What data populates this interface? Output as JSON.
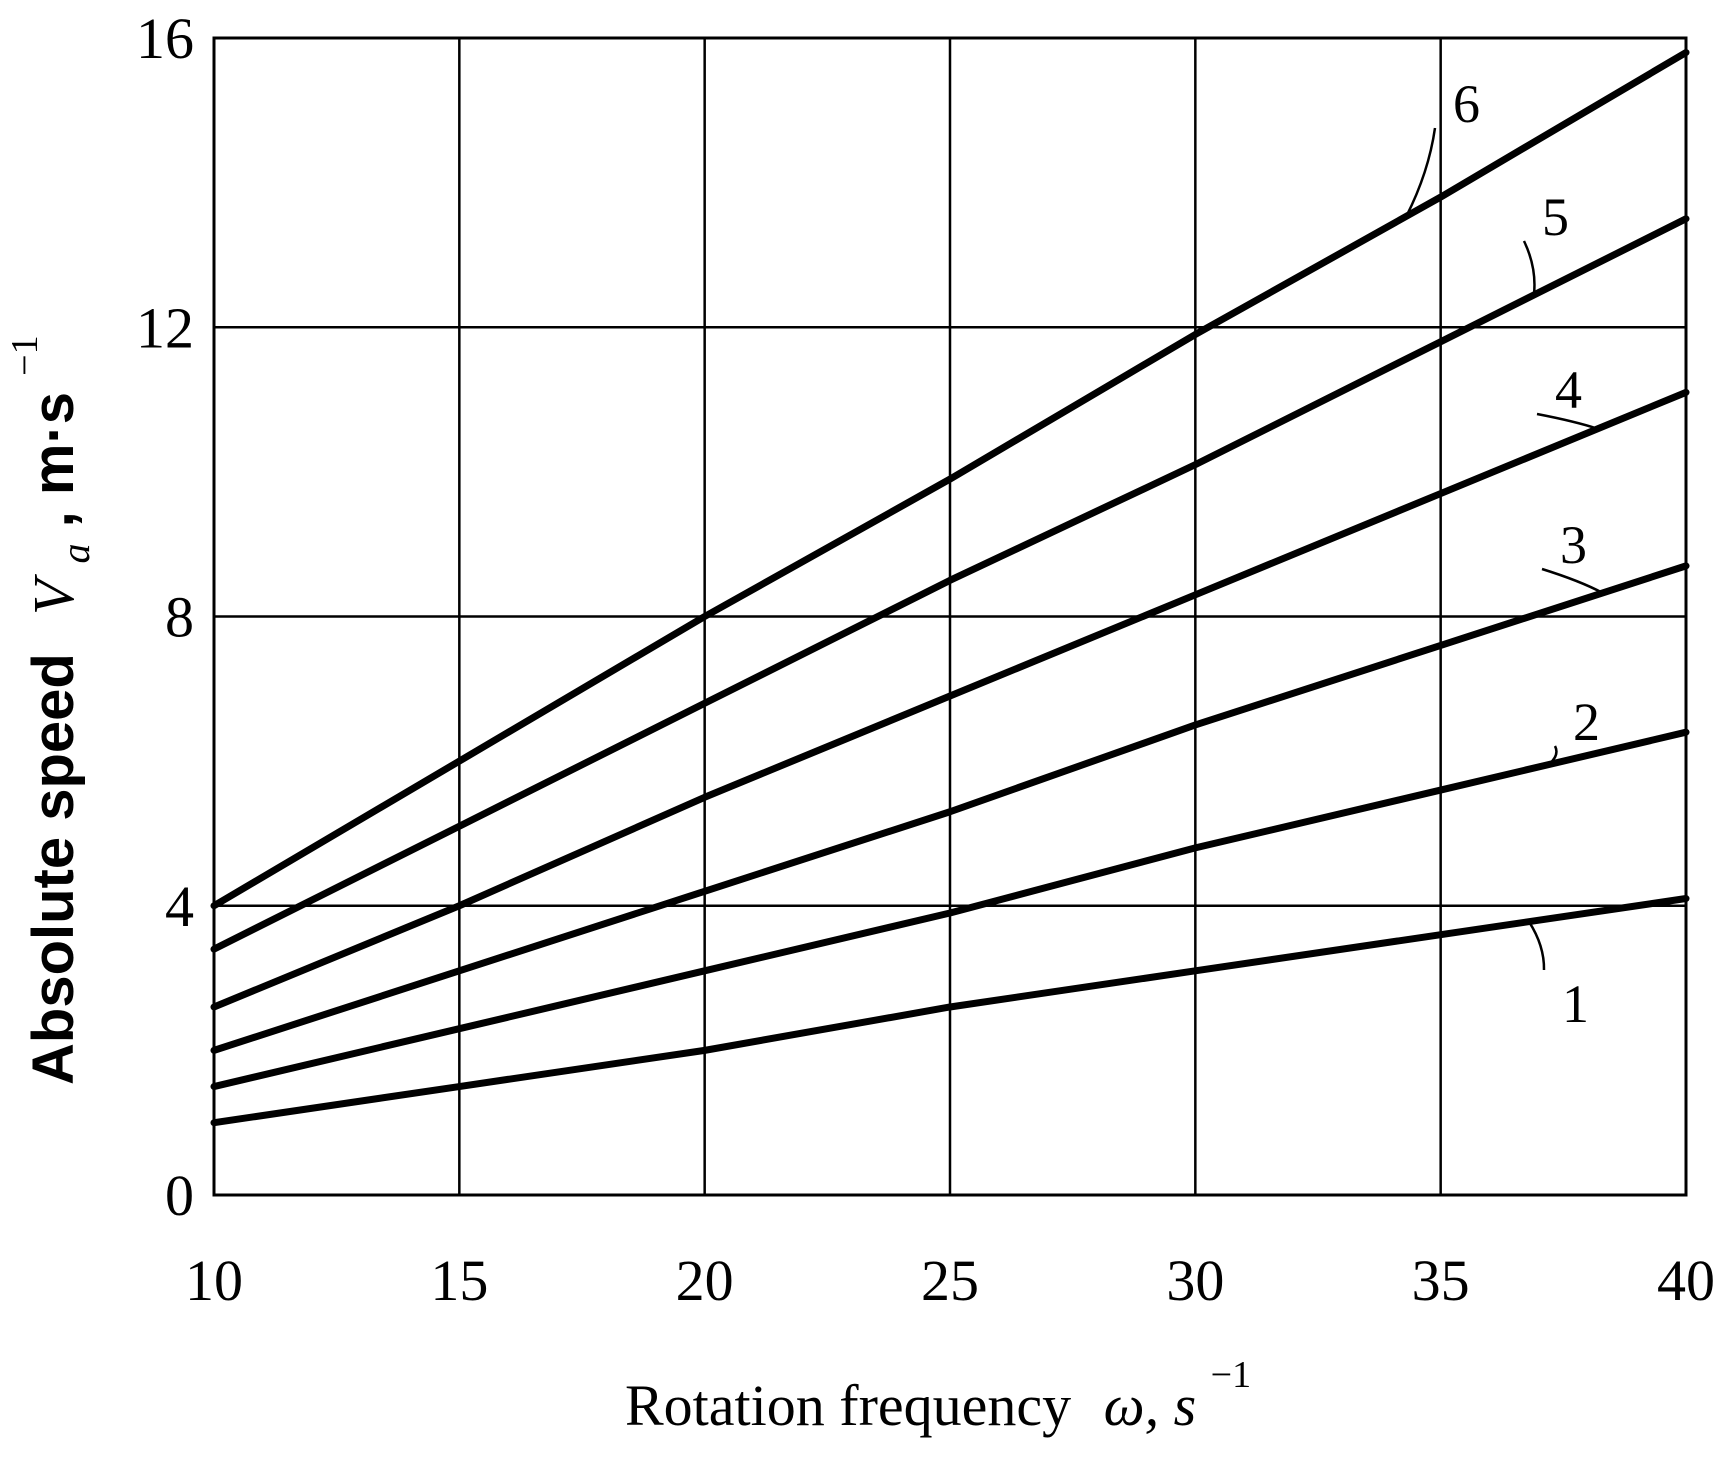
{
  "chart_data": {
    "type": "line",
    "xlabel": "Rotation frequency",
    "xlabel_symbol": "ω, s",
    "xlabel_exp": "−1",
    "ylabel": "Absolute speed",
    "ylabel_symbol": "V",
    "ylabel_sub": "a",
    "ylabel_unit": ", m·s",
    "ylabel_exp": "−1",
    "xlim": [
      10,
      40
    ],
    "ylim": [
      0,
      16
    ],
    "xticks": [
      10,
      15,
      20,
      25,
      30,
      35,
      40
    ],
    "yticks": [
      0,
      4,
      8,
      12,
      16
    ],
    "grid": true,
    "x": [
      10,
      15,
      20,
      25,
      30,
      35,
      40
    ],
    "series": [
      {
        "name": "1",
        "values": [
          1.0,
          1.5,
          2.0,
          2.6,
          3.1,
          3.6,
          4.1
        ]
      },
      {
        "name": "2",
        "values": [
          1.5,
          2.3,
          3.1,
          3.9,
          4.8,
          5.6,
          6.4
        ]
      },
      {
        "name": "3",
        "values": [
          2.0,
          3.1,
          4.2,
          5.3,
          6.5,
          7.6,
          8.7
        ]
      },
      {
        "name": "4",
        "values": [
          2.6,
          4.0,
          5.5,
          6.9,
          8.3,
          9.7,
          11.1
        ]
      },
      {
        "name": "5",
        "values": [
          3.4,
          5.1,
          6.8,
          8.5,
          10.1,
          11.8,
          13.5
        ]
      },
      {
        "name": "6",
        "values": [
          4.0,
          6.0,
          8.0,
          9.9,
          11.9,
          13.8,
          15.8
        ]
      }
    ]
  }
}
